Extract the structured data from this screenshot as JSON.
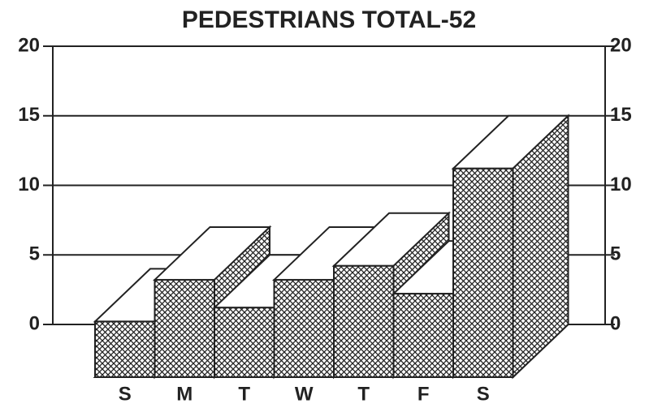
{
  "chart_data": {
    "type": "bar3d",
    "title": "PEDESTRIANS TOTAL-52",
    "categories": [
      "S",
      "M",
      "T",
      "W",
      "T",
      "F",
      "S"
    ],
    "values": [
      4,
      7,
      5,
      7,
      8,
      6,
      15
    ],
    "ylim": [
      0,
      20
    ],
    "yticks": [
      0,
      5,
      10,
      15,
      20
    ],
    "grid": true,
    "color": "#222"
  }
}
